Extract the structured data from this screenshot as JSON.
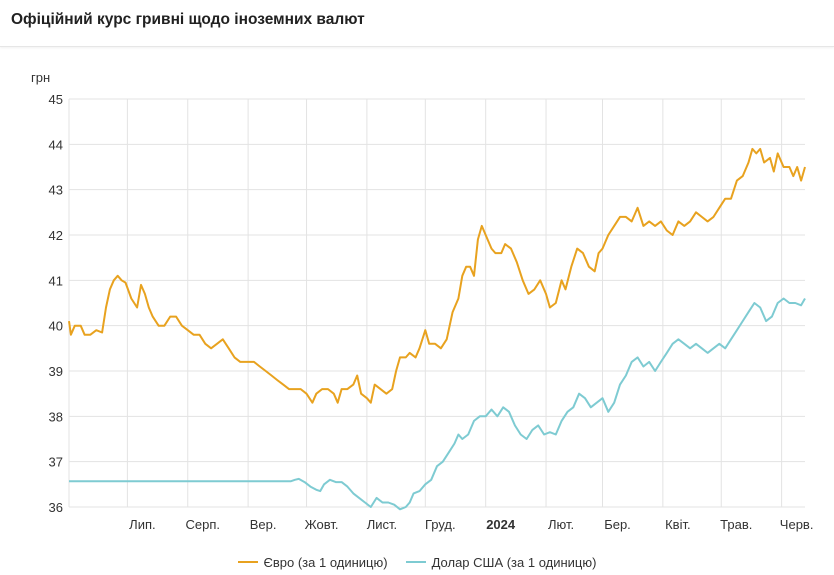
{
  "page": {
    "title": "Офіційний курс гривні щодо іноземних валют"
  },
  "colors": {
    "eur": "#e8a21f",
    "usd": "#7ecbd2",
    "grid": "#e3e3e3",
    "axis_text": "#333333"
  },
  "chart_data": {
    "type": "line",
    "ylabel": "грн",
    "ylim": [
      36,
      45
    ],
    "yticks": [
      36,
      37,
      38,
      39,
      40,
      41,
      42,
      43,
      44,
      45
    ],
    "xlim": [
      "2023-06-01",
      "2024-06-13"
    ],
    "xticks": [
      {
        "date": "2023-07-01",
        "label": "Лип.",
        "bold": false
      },
      {
        "date": "2023-08-01",
        "label": "Серп.",
        "bold": false
      },
      {
        "date": "2023-09-01",
        "label": "Вер.",
        "bold": false
      },
      {
        "date": "2023-10-01",
        "label": "Жовт.",
        "bold": false
      },
      {
        "date": "2023-11-01",
        "label": "Лист.",
        "bold": false
      },
      {
        "date": "2023-12-01",
        "label": "Груд.",
        "bold": false
      },
      {
        "date": "2024-01-01",
        "label": "2024",
        "bold": true
      },
      {
        "date": "2024-02-01",
        "label": "Лют.",
        "bold": false
      },
      {
        "date": "2024-03-01",
        "label": "Бер.",
        "bold": false
      },
      {
        "date": "2024-04-01",
        "label": "Квіт.",
        "bold": false
      },
      {
        "date": "2024-05-01",
        "label": "Трав.",
        "bold": false
      },
      {
        "date": "2024-06-01",
        "label": "Черв.",
        "bold": false
      }
    ],
    "series": [
      {
        "name": "Євро (за 1 одиницю)",
        "color": "#e8a21f",
        "points": [
          [
            "2023-06-01",
            40.1
          ],
          [
            "2023-06-02",
            39.8
          ],
          [
            "2023-06-04",
            40.0
          ],
          [
            "2023-06-07",
            40.0
          ],
          [
            "2023-06-09",
            39.8
          ],
          [
            "2023-06-12",
            39.8
          ],
          [
            "2023-06-15",
            39.9
          ],
          [
            "2023-06-18",
            39.85
          ],
          [
            "2023-06-20",
            40.4
          ],
          [
            "2023-06-22",
            40.8
          ],
          [
            "2023-06-24",
            41.0
          ],
          [
            "2023-06-26",
            41.1
          ],
          [
            "2023-06-28",
            41.0
          ],
          [
            "2023-06-30",
            40.95
          ],
          [
            "2023-07-03",
            40.6
          ],
          [
            "2023-07-06",
            40.4
          ],
          [
            "2023-07-08",
            40.9
          ],
          [
            "2023-07-10",
            40.7
          ],
          [
            "2023-07-12",
            40.4
          ],
          [
            "2023-07-14",
            40.2
          ],
          [
            "2023-07-17",
            40.0
          ],
          [
            "2023-07-20",
            40.0
          ],
          [
            "2023-07-23",
            40.2
          ],
          [
            "2023-07-26",
            40.2
          ],
          [
            "2023-07-29",
            40.0
          ],
          [
            "2023-08-01",
            39.9
          ],
          [
            "2023-08-04",
            39.8
          ],
          [
            "2023-08-07",
            39.8
          ],
          [
            "2023-08-10",
            39.6
          ],
          [
            "2023-08-13",
            39.5
          ],
          [
            "2023-08-16",
            39.6
          ],
          [
            "2023-08-19",
            39.7
          ],
          [
            "2023-08-22",
            39.5
          ],
          [
            "2023-08-25",
            39.3
          ],
          [
            "2023-08-28",
            39.2
          ],
          [
            "2023-08-31",
            39.2
          ],
          [
            "2023-09-04",
            39.2
          ],
          [
            "2023-09-07",
            39.1
          ],
          [
            "2023-09-10",
            39.0
          ],
          [
            "2023-09-13",
            38.9
          ],
          [
            "2023-09-16",
            38.8
          ],
          [
            "2023-09-19",
            38.7
          ],
          [
            "2023-09-22",
            38.6
          ],
          [
            "2023-09-25",
            38.6
          ],
          [
            "2023-09-28",
            38.6
          ],
          [
            "2023-10-01",
            38.5
          ],
          [
            "2023-10-04",
            38.3
          ],
          [
            "2023-10-06",
            38.5
          ],
          [
            "2023-10-09",
            38.6
          ],
          [
            "2023-10-12",
            38.6
          ],
          [
            "2023-10-15",
            38.5
          ],
          [
            "2023-10-17",
            38.3
          ],
          [
            "2023-10-19",
            38.6
          ],
          [
            "2023-10-22",
            38.6
          ],
          [
            "2023-10-25",
            38.7
          ],
          [
            "2023-10-27",
            38.9
          ],
          [
            "2023-10-29",
            38.5
          ],
          [
            "2023-11-01",
            38.4
          ],
          [
            "2023-11-03",
            38.3
          ],
          [
            "2023-11-05",
            38.7
          ],
          [
            "2023-11-08",
            38.6
          ],
          [
            "2023-11-11",
            38.5
          ],
          [
            "2023-11-14",
            38.6
          ],
          [
            "2023-11-16",
            39.0
          ],
          [
            "2023-11-18",
            39.3
          ],
          [
            "2023-11-21",
            39.3
          ],
          [
            "2023-11-23",
            39.4
          ],
          [
            "2023-11-26",
            39.3
          ],
          [
            "2023-11-28",
            39.5
          ],
          [
            "2023-12-01",
            39.9
          ],
          [
            "2023-12-03",
            39.6
          ],
          [
            "2023-12-06",
            39.6
          ],
          [
            "2023-12-09",
            39.5
          ],
          [
            "2023-12-12",
            39.7
          ],
          [
            "2023-12-15",
            40.3
          ],
          [
            "2023-12-18",
            40.6
          ],
          [
            "2023-12-20",
            41.1
          ],
          [
            "2023-12-22",
            41.3
          ],
          [
            "2023-12-24",
            41.3
          ],
          [
            "2023-12-26",
            41.1
          ],
          [
            "2023-12-28",
            41.9
          ],
          [
            "2023-12-30",
            42.2
          ],
          [
            "2024-01-02",
            41.9
          ],
          [
            "2024-01-04",
            41.7
          ],
          [
            "2024-01-06",
            41.6
          ],
          [
            "2024-01-09",
            41.6
          ],
          [
            "2024-01-11",
            41.8
          ],
          [
            "2024-01-14",
            41.7
          ],
          [
            "2024-01-17",
            41.4
          ],
          [
            "2024-01-20",
            41.0
          ],
          [
            "2024-01-23",
            40.7
          ],
          [
            "2024-01-26",
            40.8
          ],
          [
            "2024-01-29",
            41.0
          ],
          [
            "2024-02-01",
            40.7
          ],
          [
            "2024-02-03",
            40.4
          ],
          [
            "2024-02-06",
            40.5
          ],
          [
            "2024-02-09",
            41.0
          ],
          [
            "2024-02-11",
            40.8
          ],
          [
            "2024-02-14",
            41.3
          ],
          [
            "2024-02-17",
            41.7
          ],
          [
            "2024-02-20",
            41.6
          ],
          [
            "2024-02-23",
            41.3
          ],
          [
            "2024-02-26",
            41.2
          ],
          [
            "2024-02-28",
            41.6
          ],
          [
            "2024-03-01",
            41.7
          ],
          [
            "2024-03-04",
            42.0
          ],
          [
            "2024-03-07",
            42.2
          ],
          [
            "2024-03-10",
            42.4
          ],
          [
            "2024-03-13",
            42.4
          ],
          [
            "2024-03-16",
            42.3
          ],
          [
            "2024-03-19",
            42.6
          ],
          [
            "2024-03-22",
            42.2
          ],
          [
            "2024-03-25",
            42.3
          ],
          [
            "2024-03-28",
            42.2
          ],
          [
            "2024-03-31",
            42.3
          ],
          [
            "2024-04-03",
            42.1
          ],
          [
            "2024-04-06",
            42.0
          ],
          [
            "2024-04-09",
            42.3
          ],
          [
            "2024-04-12",
            42.2
          ],
          [
            "2024-04-15",
            42.3
          ],
          [
            "2024-04-18",
            42.5
          ],
          [
            "2024-04-21",
            42.4
          ],
          [
            "2024-04-24",
            42.3
          ],
          [
            "2024-04-27",
            42.4
          ],
          [
            "2024-04-30",
            42.6
          ],
          [
            "2024-05-03",
            42.8
          ],
          [
            "2024-05-06",
            42.8
          ],
          [
            "2024-05-09",
            43.2
          ],
          [
            "2024-05-12",
            43.3
          ],
          [
            "2024-05-15",
            43.6
          ],
          [
            "2024-05-17",
            43.9
          ],
          [
            "2024-05-19",
            43.8
          ],
          [
            "2024-05-21",
            43.9
          ],
          [
            "2024-05-23",
            43.6
          ],
          [
            "2024-05-26",
            43.7
          ],
          [
            "2024-05-28",
            43.4
          ],
          [
            "2024-05-30",
            43.8
          ],
          [
            "2024-06-02",
            43.5
          ],
          [
            "2024-06-05",
            43.5
          ],
          [
            "2024-06-07",
            43.3
          ],
          [
            "2024-06-09",
            43.5
          ],
          [
            "2024-06-11",
            43.2
          ],
          [
            "2024-06-13",
            43.5
          ]
        ]
      },
      {
        "name": "Долар США (за 1 одиницю)",
        "color": "#7ecbd2",
        "points": [
          [
            "2023-06-01",
            36.57
          ],
          [
            "2023-07-01",
            36.57
          ],
          [
            "2023-08-01",
            36.57
          ],
          [
            "2023-09-01",
            36.57
          ],
          [
            "2023-09-15",
            36.57
          ],
          [
            "2023-09-23",
            36.57
          ],
          [
            "2023-09-25",
            36.6
          ],
          [
            "2023-09-27",
            36.62
          ],
          [
            "2023-09-30",
            36.55
          ],
          [
            "2023-10-03",
            36.45
          ],
          [
            "2023-10-06",
            36.38
          ],
          [
            "2023-10-08",
            36.35
          ],
          [
            "2023-10-10",
            36.5
          ],
          [
            "2023-10-13",
            36.6
          ],
          [
            "2023-10-16",
            36.55
          ],
          [
            "2023-10-19",
            36.55
          ],
          [
            "2023-10-22",
            36.45
          ],
          [
            "2023-10-25",
            36.3
          ],
          [
            "2023-10-28",
            36.2
          ],
          [
            "2023-10-31",
            36.1
          ],
          [
            "2023-11-03",
            36.0
          ],
          [
            "2023-11-06",
            36.2
          ],
          [
            "2023-11-09",
            36.1
          ],
          [
            "2023-11-12",
            36.1
          ],
          [
            "2023-11-15",
            36.05
          ],
          [
            "2023-11-18",
            35.95
          ],
          [
            "2023-11-21",
            36.0
          ],
          [
            "2023-11-23",
            36.1
          ],
          [
            "2023-11-25",
            36.3
          ],
          [
            "2023-11-28",
            36.35
          ],
          [
            "2023-12-01",
            36.5
          ],
          [
            "2023-12-04",
            36.6
          ],
          [
            "2023-12-07",
            36.9
          ],
          [
            "2023-12-10",
            37.0
          ],
          [
            "2023-12-13",
            37.2
          ],
          [
            "2023-12-16",
            37.4
          ],
          [
            "2023-12-18",
            37.6
          ],
          [
            "2023-12-20",
            37.5
          ],
          [
            "2023-12-23",
            37.6
          ],
          [
            "2023-12-26",
            37.9
          ],
          [
            "2023-12-29",
            38.0
          ],
          [
            "2024-01-01",
            38.0
          ],
          [
            "2024-01-04",
            38.15
          ],
          [
            "2024-01-07",
            38.0
          ],
          [
            "2024-01-10",
            38.2
          ],
          [
            "2024-01-13",
            38.1
          ],
          [
            "2024-01-16",
            37.8
          ],
          [
            "2024-01-19",
            37.6
          ],
          [
            "2024-01-22",
            37.5
          ],
          [
            "2024-01-25",
            37.7
          ],
          [
            "2024-01-28",
            37.8
          ],
          [
            "2024-01-31",
            37.6
          ],
          [
            "2024-02-03",
            37.65
          ],
          [
            "2024-02-06",
            37.6
          ],
          [
            "2024-02-09",
            37.9
          ],
          [
            "2024-02-12",
            38.1
          ],
          [
            "2024-02-15",
            38.2
          ],
          [
            "2024-02-18",
            38.5
          ],
          [
            "2024-02-21",
            38.4
          ],
          [
            "2024-02-24",
            38.2
          ],
          [
            "2024-02-27",
            38.3
          ],
          [
            "2024-03-01",
            38.4
          ],
          [
            "2024-03-04",
            38.1
          ],
          [
            "2024-03-07",
            38.3
          ],
          [
            "2024-03-10",
            38.7
          ],
          [
            "2024-03-13",
            38.9
          ],
          [
            "2024-03-16",
            39.2
          ],
          [
            "2024-03-19",
            39.3
          ],
          [
            "2024-03-22",
            39.1
          ],
          [
            "2024-03-25",
            39.2
          ],
          [
            "2024-03-28",
            39.0
          ],
          [
            "2024-03-31",
            39.2
          ],
          [
            "2024-04-03",
            39.4
          ],
          [
            "2024-04-06",
            39.6
          ],
          [
            "2024-04-09",
            39.7
          ],
          [
            "2024-04-12",
            39.6
          ],
          [
            "2024-04-15",
            39.5
          ],
          [
            "2024-04-18",
            39.6
          ],
          [
            "2024-04-21",
            39.5
          ],
          [
            "2024-04-24",
            39.4
          ],
          [
            "2024-04-27",
            39.5
          ],
          [
            "2024-04-30",
            39.6
          ],
          [
            "2024-05-03",
            39.5
          ],
          [
            "2024-05-06",
            39.7
          ],
          [
            "2024-05-09",
            39.9
          ],
          [
            "2024-05-12",
            40.1
          ],
          [
            "2024-05-15",
            40.3
          ],
          [
            "2024-05-18",
            40.5
          ],
          [
            "2024-05-21",
            40.4
          ],
          [
            "2024-05-24",
            40.1
          ],
          [
            "2024-05-27",
            40.2
          ],
          [
            "2024-05-30",
            40.5
          ],
          [
            "2024-06-02",
            40.6
          ],
          [
            "2024-06-05",
            40.5
          ],
          [
            "2024-06-08",
            40.5
          ],
          [
            "2024-06-11",
            40.45
          ],
          [
            "2024-06-13",
            40.6
          ]
        ]
      }
    ]
  }
}
